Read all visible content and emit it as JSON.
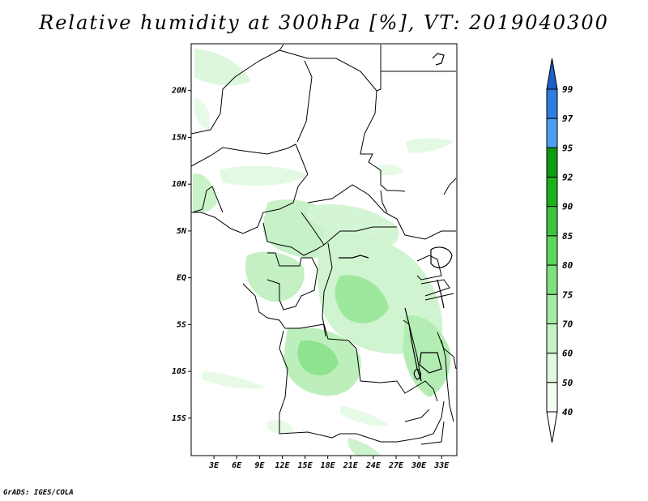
{
  "title": "Relative humidity at 300hPa [%], VT: 2019040300",
  "credit": "GrADS: IGES/COLA",
  "map": {
    "lat_range": [
      -19,
      25
    ],
    "lon_range": [
      0,
      35
    ],
    "lat_ticks": [
      "20N",
      "15N",
      "10N",
      "5N",
      "EQ",
      "5S",
      "10S",
      "15S"
    ],
    "lat_tick_values": [
      20,
      15,
      10,
      5,
      0,
      -5,
      -10,
      -15
    ],
    "lon_ticks": [
      "3E",
      "6E",
      "9E",
      "12E",
      "15E",
      "18E",
      "21E",
      "24E",
      "27E",
      "30E",
      "33E"
    ],
    "lon_tick_values": [
      3,
      6,
      9,
      12,
      15,
      18,
      21,
      24,
      27,
      30,
      33
    ]
  },
  "colorbar": {
    "labels": [
      "99",
      "97",
      "95",
      "92",
      "90",
      "85",
      "80",
      "75",
      "70",
      "60",
      "50",
      "40"
    ],
    "colors": [
      "#1c5fc9",
      "#2f7ee0",
      "#4aa0ef",
      "#109b10",
      "#1db11d",
      "#3cc43c",
      "#5cd65c",
      "#7fe07f",
      "#a4eaa4",
      "#c4f2c4",
      "#e0f9e0",
      "#f2fdf2"
    ],
    "over_color": "#1c5fc9",
    "under_color": "#ffffff"
  }
}
